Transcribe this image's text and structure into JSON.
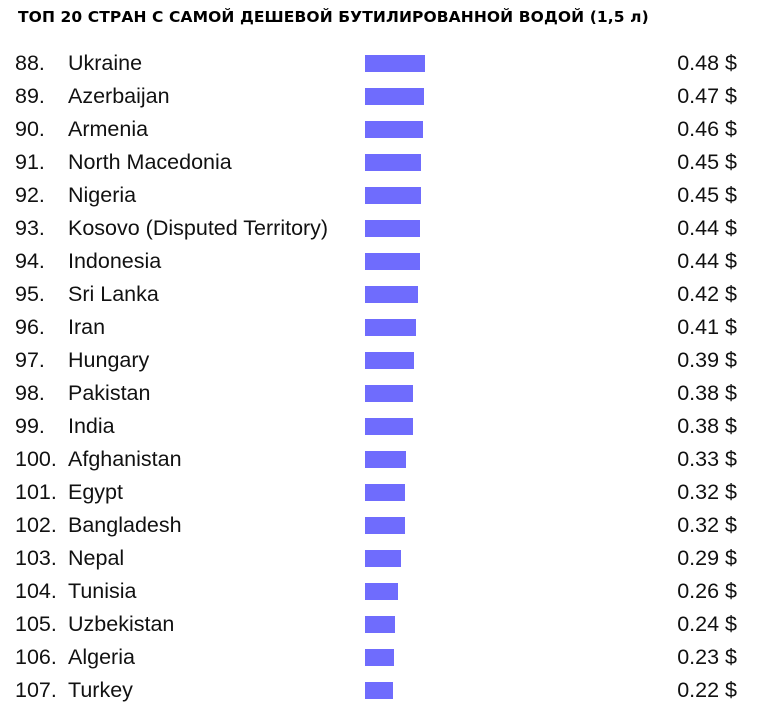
{
  "chart_data": {
    "type": "bar",
    "title": "ТОП 20 СТРАН С САМОЙ ДЕШЕВОЙ БУТИЛИРОВАННОЙ ВОДОЙ (1,5 л)",
    "orientation": "horizontal",
    "bar_color": "#6f6cfd",
    "unit": "$",
    "rows": [
      {
        "rank": "88.",
        "country": "Ukraine",
        "value": 0.48,
        "label": "0.48 $"
      },
      {
        "rank": "89.",
        "country": "Azerbaijan",
        "value": 0.47,
        "label": "0.47 $"
      },
      {
        "rank": "90.",
        "country": "Armenia",
        "value": 0.46,
        "label": "0.46 $"
      },
      {
        "rank": "91.",
        "country": "North Macedonia",
        "value": 0.45,
        "label": "0.45 $"
      },
      {
        "rank": "92.",
        "country": "Nigeria",
        "value": 0.45,
        "label": "0.45 $"
      },
      {
        "rank": "93.",
        "country": "Kosovo (Disputed Territory)",
        "value": 0.44,
        "label": "0.44 $"
      },
      {
        "rank": "94.",
        "country": "Indonesia",
        "value": 0.44,
        "label": "0.44 $"
      },
      {
        "rank": "95.",
        "country": "Sri Lanka",
        "value": 0.42,
        "label": "0.42 $"
      },
      {
        "rank": "96.",
        "country": "Iran",
        "value": 0.41,
        "label": "0.41 $"
      },
      {
        "rank": "97.",
        "country": "Hungary",
        "value": 0.39,
        "label": "0.39 $"
      },
      {
        "rank": "98.",
        "country": "Pakistan",
        "value": 0.38,
        "label": "0.38 $"
      },
      {
        "rank": "99.",
        "country": "India",
        "value": 0.38,
        "label": "0.38 $"
      },
      {
        "rank": "100.",
        "country": "Afghanistan",
        "value": 0.33,
        "label": "0.33 $"
      },
      {
        "rank": "101.",
        "country": "Egypt",
        "value": 0.32,
        "label": "0.32 $"
      },
      {
        "rank": "102.",
        "country": "Bangladesh",
        "value": 0.32,
        "label": "0.32 $"
      },
      {
        "rank": "103.",
        "country": "Nepal",
        "value": 0.29,
        "label": "0.29 $"
      },
      {
        "rank": "104.",
        "country": "Tunisia",
        "value": 0.26,
        "label": "0.26 $"
      },
      {
        "rank": "105.",
        "country": "Uzbekistan",
        "value": 0.24,
        "label": "0.24 $"
      },
      {
        "rank": "106.",
        "country": "Algeria",
        "value": 0.23,
        "label": "0.23 $"
      },
      {
        "rank": "107.",
        "country": "Turkey",
        "value": 0.22,
        "label": "0.22 $"
      }
    ]
  }
}
